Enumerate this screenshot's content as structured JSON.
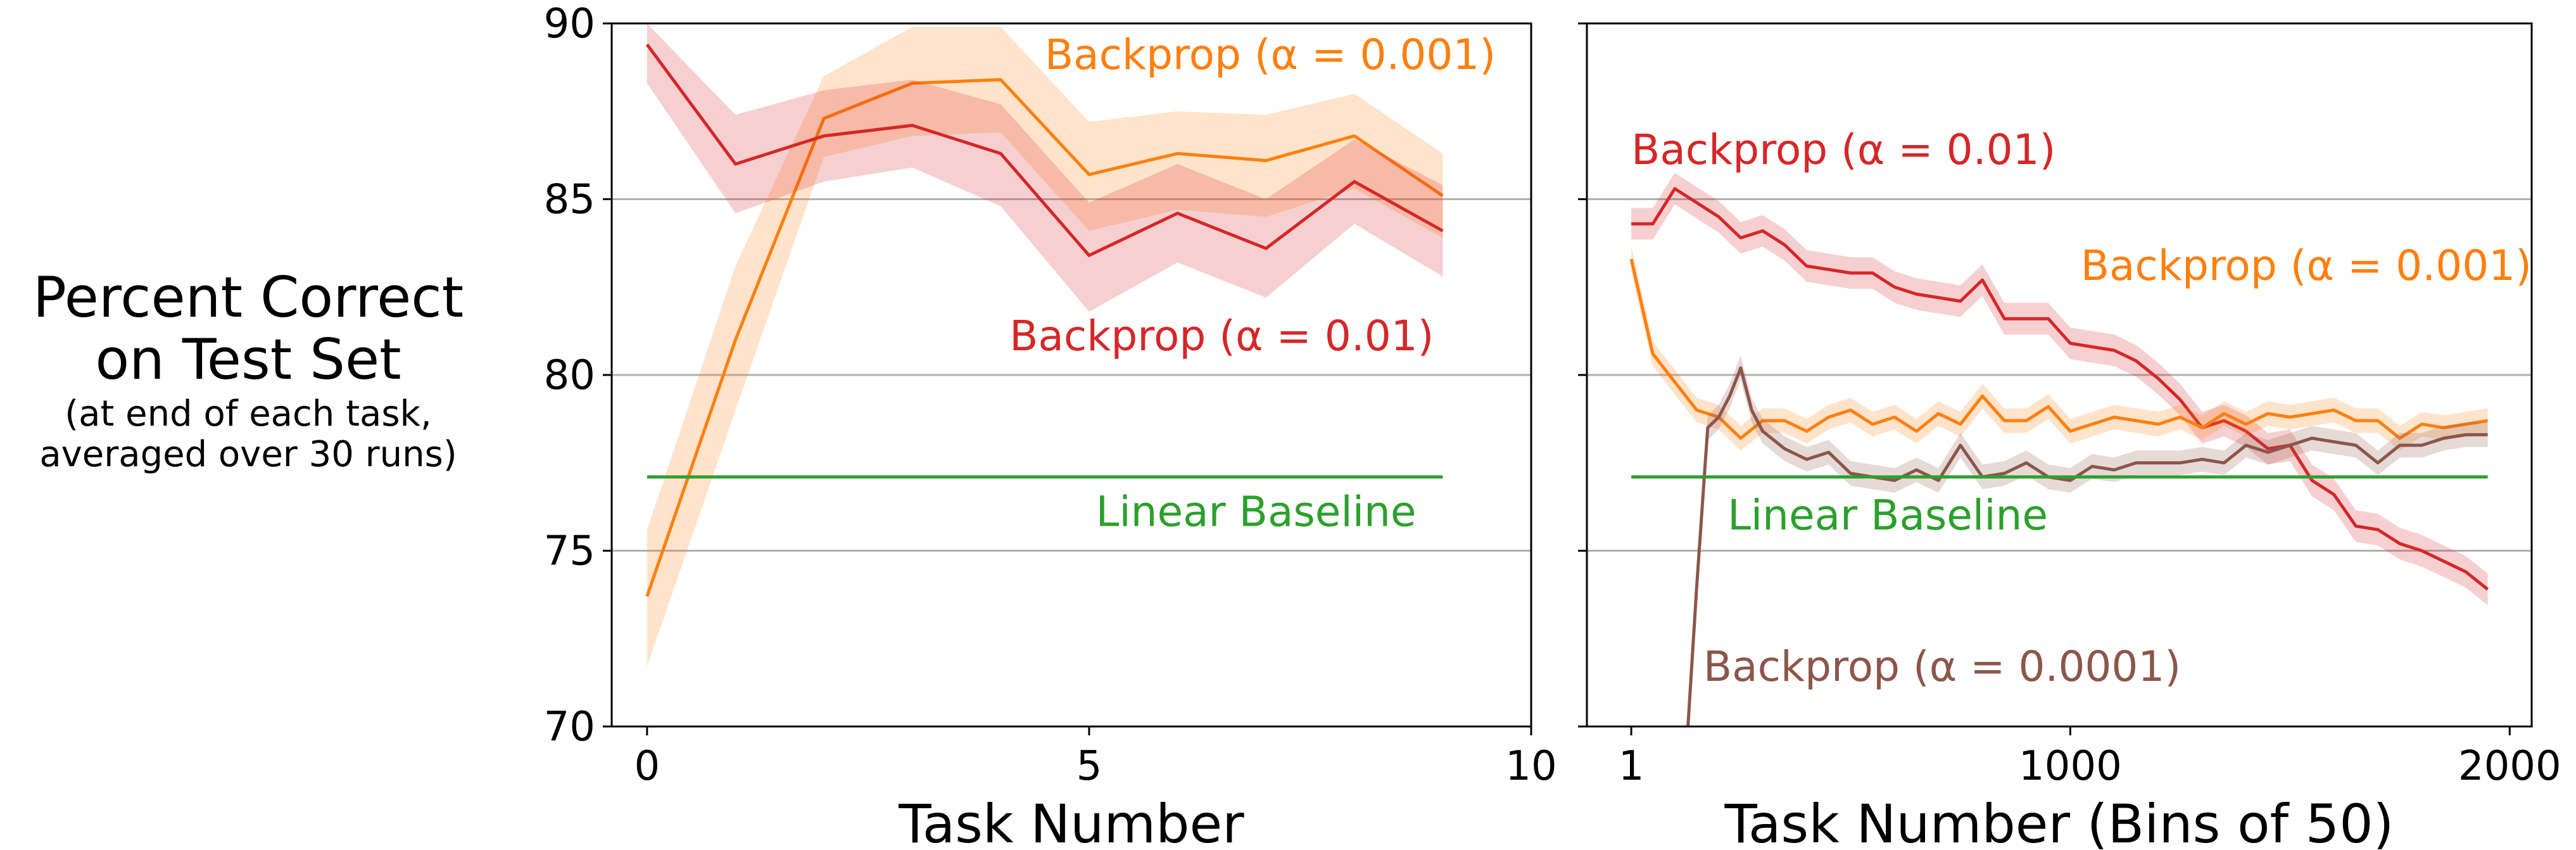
{
  "ylabel": {
    "line1": "Percent Correct",
    "line2": "on Test Set",
    "line3": "(at end of each task,",
    "line4": "averaged over 30 runs)"
  },
  "colors": {
    "orange": "#ff7f0e",
    "red": "#d62728",
    "brown": "#8c564b",
    "green": "#2ca02c",
    "grid": "#b0b0b0"
  },
  "chart_data": [
    {
      "type": "line",
      "xlabel": "Task Number",
      "xticks": [
        "0",
        "5",
        "10"
      ],
      "xlim": [
        -0.4,
        10
      ],
      "ylim": [
        70,
        90
      ],
      "yticks": [
        "70",
        "75",
        "80",
        "85",
        "90"
      ],
      "grid": "horizontal",
      "series": [
        {
          "name": "Backprop (α = 0.001)",
          "color": "orange",
          "x": [
            0,
            1,
            2,
            3,
            4,
            5,
            6,
            7,
            8,
            9
          ],
          "y": [
            73.7,
            81.0,
            87.3,
            88.3,
            88.4,
            85.7,
            86.3,
            86.1,
            86.8,
            85.1
          ],
          "lower": [
            71.7,
            79.0,
            86.2,
            86.8,
            86.9,
            84.1,
            84.7,
            84.5,
            85.3,
            83.9
          ],
          "upper": [
            75.6,
            83.1,
            88.5,
            89.9,
            89.9,
            87.2,
            87.5,
            87.4,
            88.0,
            86.3
          ]
        },
        {
          "name": "Backprop (α = 0.01)",
          "color": "red",
          "x": [
            0,
            1,
            2,
            3,
            4,
            5,
            6,
            7,
            8,
            9
          ],
          "y": [
            89.4,
            86.0,
            86.8,
            87.1,
            86.3,
            83.4,
            84.6,
            83.6,
            85.5,
            84.1
          ],
          "lower": [
            88.3,
            84.6,
            85.5,
            85.9,
            84.8,
            81.8,
            83.2,
            82.2,
            84.3,
            82.8
          ],
          "upper": [
            90.0,
            87.4,
            88.1,
            88.4,
            87.7,
            84.9,
            86.0,
            85.0,
            86.7,
            85.4
          ]
        },
        {
          "name": "Linear Baseline",
          "color": "green",
          "x": [
            0,
            9
          ],
          "y": [
            77.1,
            77.1
          ]
        }
      ],
      "annotations": [
        {
          "text": "Backprop (α = 0.001)",
          "color": "orange",
          "x": 9.6,
          "y": 88.7,
          "anchor": "end"
        },
        {
          "text": "Backprop (α = 0.01)",
          "color": "red",
          "x": 8.9,
          "y": 80.7,
          "anchor": "end"
        },
        {
          "text": "Linear Baseline",
          "color": "green",
          "x": 8.7,
          "y": 75.7,
          "anchor": "end"
        }
      ]
    },
    {
      "type": "line",
      "xlabel": "Task Number (Bins of 50)",
      "xticks": [
        "1",
        "1000",
        "2000"
      ],
      "xlim": [
        -100,
        2050
      ],
      "ylim": [
        70,
        90
      ],
      "yticks": [
        "70",
        "75",
        "80",
        "85",
        "90"
      ],
      "grid": "horizontal",
      "series": [
        {
          "name": "Backprop (α = 0.01)",
          "color": "red",
          "band": 0.45,
          "x": [
            1,
            50,
            100,
            150,
            200,
            250,
            300,
            350,
            400,
            450,
            500,
            550,
            600,
            650,
            700,
            750,
            800,
            850,
            900,
            950,
            1000,
            1050,
            1100,
            1150,
            1200,
            1250,
            1300,
            1350,
            1400,
            1450,
            1500,
            1550,
            1600,
            1650,
            1700,
            1750,
            1800,
            1850,
            1900,
            1950
          ],
          "y": [
            84.3,
            84.3,
            85.3,
            84.9,
            84.5,
            83.9,
            84.1,
            83.7,
            83.1,
            83.0,
            82.9,
            82.9,
            82.5,
            82.3,
            82.2,
            82.1,
            82.7,
            81.6,
            81.6,
            81.6,
            80.9,
            80.8,
            80.7,
            80.4,
            79.9,
            79.3,
            78.5,
            78.7,
            78.4,
            77.9,
            78.0,
            77.0,
            76.6,
            75.7,
            75.6,
            75.2,
            75.0,
            74.7,
            74.4,
            73.9
          ]
        },
        {
          "name": "Backprop (α = 0.001)",
          "color": "orange",
          "band": 0.35,
          "x": [
            1,
            50,
            100,
            150,
            200,
            250,
            300,
            350,
            400,
            450,
            500,
            550,
            600,
            650,
            700,
            750,
            800,
            850,
            900,
            950,
            1000,
            1050,
            1100,
            1150,
            1200,
            1250,
            1300,
            1350,
            1400,
            1450,
            1500,
            1550,
            1600,
            1650,
            1700,
            1750,
            1800,
            1850,
            1900,
            1950
          ],
          "y": [
            83.3,
            80.6,
            79.8,
            79.0,
            78.8,
            78.2,
            78.7,
            78.7,
            78.4,
            78.8,
            79.0,
            78.6,
            78.8,
            78.4,
            78.9,
            78.6,
            79.4,
            78.7,
            78.7,
            79.1,
            78.4,
            78.6,
            78.8,
            78.7,
            78.6,
            78.8,
            78.5,
            78.9,
            78.6,
            78.9,
            78.8,
            78.9,
            79.0,
            78.7,
            78.7,
            78.2,
            78.6,
            78.5,
            78.6,
            78.7
          ]
        },
        {
          "name": "Backprop (α = 0.0001)",
          "color": "brown",
          "band": 0.35,
          "x": [
            130,
            150,
            175,
            200,
            225,
            250,
            275,
            300,
            350,
            400,
            450,
            500,
            550,
            600,
            650,
            700,
            750,
            800,
            850,
            900,
            950,
            1000,
            1050,
            1100,
            1150,
            1200,
            1250,
            1300,
            1350,
            1400,
            1450,
            1500,
            1550,
            1600,
            1650,
            1700,
            1750,
            1800,
            1850,
            1900,
            1950
          ],
          "y": [
            70.0,
            74.0,
            78.5,
            78.8,
            79.4,
            80.2,
            79.0,
            78.4,
            77.9,
            77.6,
            77.8,
            77.2,
            77.1,
            77.0,
            77.3,
            77.0,
            78.0,
            77.1,
            77.2,
            77.5,
            77.1,
            77.0,
            77.4,
            77.3,
            77.5,
            77.5,
            77.5,
            77.6,
            77.5,
            78.0,
            77.8,
            78.0,
            78.2,
            78.1,
            78.0,
            77.5,
            78.0,
            78.0,
            78.2,
            78.3,
            78.3
          ]
        },
        {
          "name": "Linear Baseline",
          "color": "green",
          "x": [
            1,
            1950
          ],
          "y": [
            77.1,
            77.1
          ]
        }
      ],
      "annotations": [
        {
          "text": "Backprop (α = 0.01)",
          "color": "red",
          "x": 1,
          "y": 86.0,
          "anchor": "start"
        },
        {
          "text": "Backprop (α = 0.001)",
          "color": "orange",
          "x": 2050,
          "y": 82.7,
          "anchor": "end"
        },
        {
          "text": "Linear Baseline",
          "color": "green",
          "x": 220,
          "y": 75.6,
          "anchor": "start"
        },
        {
          "text": "Backprop (α = 0.0001)",
          "color": "brown",
          "x": 165,
          "y": 71.3,
          "anchor": "start"
        }
      ]
    }
  ]
}
